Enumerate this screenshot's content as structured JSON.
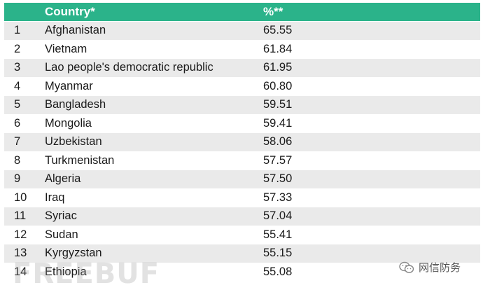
{
  "table": {
    "headers": {
      "rank": "",
      "country": "Country*",
      "percent": "%**"
    },
    "rows": [
      {
        "rank": "1",
        "country": "Afghanistan",
        "percent": "65.55"
      },
      {
        "rank": "2",
        "country": "Vietnam",
        "percent": "61.84"
      },
      {
        "rank": "3",
        "country": "Lao people's democratic republic",
        "percent": "61.95"
      },
      {
        "rank": "4",
        "country": "Myanmar",
        "percent": "60.80"
      },
      {
        "rank": "5",
        "country": "Bangladesh",
        "percent": "59.51"
      },
      {
        "rank": "6",
        "country": "Mongolia",
        "percent": "59.41"
      },
      {
        "rank": "7",
        "country": "Uzbekistan",
        "percent": "58.06"
      },
      {
        "rank": "8",
        "country": "Turkmenistan",
        "percent": "57.57"
      },
      {
        "rank": "9",
        "country": "Algeria",
        "percent": "57.50"
      },
      {
        "rank": "10",
        "country": "Iraq",
        "percent": "57.33"
      },
      {
        "rank": "11",
        "country": "Syriac",
        "percent": "57.04"
      },
      {
        "rank": "12",
        "country": "Sudan",
        "percent": "55.41"
      },
      {
        "rank": "13",
        "country": "Kyrgyzstan",
        "percent": "55.15"
      },
      {
        "rank": "14",
        "country": "Ethiopia",
        "percent": "55.08"
      }
    ]
  },
  "watermarks": {
    "left_text": "FREEBUF",
    "right_text": "网信防务",
    "right_icon": "wechat-icon"
  },
  "colors": {
    "header_bg": "#2bb38a",
    "stripe_bg": "#eaeaea"
  }
}
